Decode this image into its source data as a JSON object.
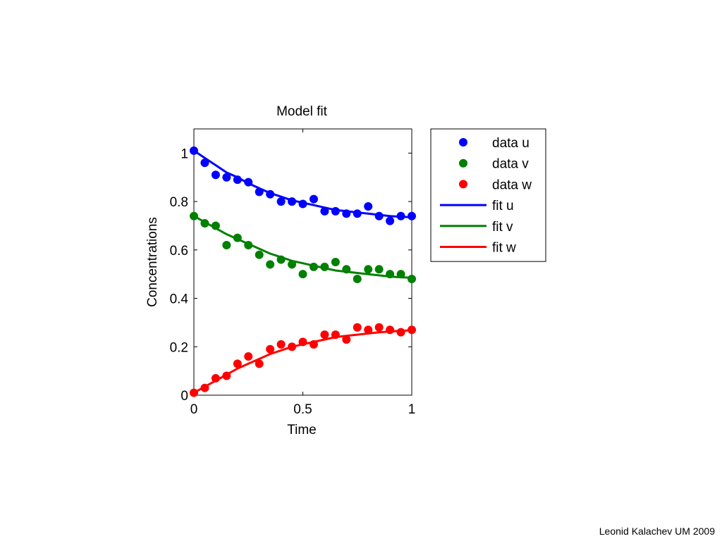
{
  "footer": "Leonid Kalachev UM 2009",
  "chart_data": {
    "type": "scatter",
    "title": "Model fit",
    "xlabel": "Time",
    "ylabel": "Concentrations",
    "xlim": [
      0,
      1
    ],
    "ylim": [
      0,
      1.1
    ],
    "xticks": [
      0,
      0.5,
      1
    ],
    "xtick_labels": [
      "0",
      "0.5",
      "1"
    ],
    "yticks": [
      0,
      0.2,
      0.4,
      0.6,
      0.8,
      1
    ],
    "ytick_labels": [
      "0",
      "0.2",
      "0.4",
      "0.6",
      "0.8",
      "1"
    ],
    "grid": false,
    "legend_position": "outside-right",
    "x": [
      0,
      0.05,
      0.1,
      0.15,
      0.2,
      0.25,
      0.3,
      0.35,
      0.4,
      0.45,
      0.5,
      0.55,
      0.6,
      0.65,
      0.7,
      0.75,
      0.8,
      0.85,
      0.9,
      0.95,
      1.0
    ],
    "series": [
      {
        "name": "data u",
        "kind": "points",
        "color": "#0000ff",
        "values": [
          1.01,
          0.96,
          0.91,
          0.9,
          0.89,
          0.88,
          0.84,
          0.83,
          0.8,
          0.8,
          0.79,
          0.81,
          0.76,
          0.76,
          0.75,
          0.75,
          0.78,
          0.74,
          0.72,
          0.74,
          0.74
        ]
      },
      {
        "name": "data v",
        "kind": "points",
        "color": "#008000",
        "values": [
          0.74,
          0.71,
          0.7,
          0.62,
          0.65,
          0.62,
          0.58,
          0.54,
          0.56,
          0.54,
          0.5,
          0.53,
          0.53,
          0.55,
          0.52,
          0.48,
          0.52,
          0.52,
          0.5,
          0.5,
          0.48
        ]
      },
      {
        "name": "data w",
        "kind": "points",
        "color": "#ff0000",
        "values": [
          0.01,
          0.03,
          0.07,
          0.08,
          0.13,
          0.16,
          0.13,
          0.19,
          0.21,
          0.2,
          0.22,
          0.21,
          0.25,
          0.25,
          0.23,
          0.28,
          0.27,
          0.28,
          0.27,
          0.26,
          0.27
        ]
      },
      {
        "name": "fit u",
        "kind": "line",
        "color": "#0000ff",
        "values": [
          1.01,
          0.98,
          0.95,
          0.92,
          0.9,
          0.875,
          0.855,
          0.835,
          0.82,
          0.805,
          0.795,
          0.785,
          0.775,
          0.765,
          0.76,
          0.755,
          0.75,
          0.745,
          0.74,
          0.737,
          0.735
        ]
      },
      {
        "name": "fit v",
        "kind": "line",
        "color": "#008000",
        "values": [
          0.74,
          0.715,
          0.69,
          0.665,
          0.645,
          0.625,
          0.605,
          0.585,
          0.57,
          0.555,
          0.545,
          0.535,
          0.525,
          0.515,
          0.51,
          0.505,
          0.5,
          0.495,
          0.49,
          0.487,
          0.485
        ]
      },
      {
        "name": "fit w",
        "kind": "line",
        "color": "#ff0000",
        "values": [
          0.01,
          0.035,
          0.06,
          0.085,
          0.11,
          0.13,
          0.15,
          0.17,
          0.185,
          0.2,
          0.21,
          0.22,
          0.23,
          0.24,
          0.245,
          0.25,
          0.255,
          0.26,
          0.263,
          0.266,
          0.268
        ]
      }
    ]
  }
}
